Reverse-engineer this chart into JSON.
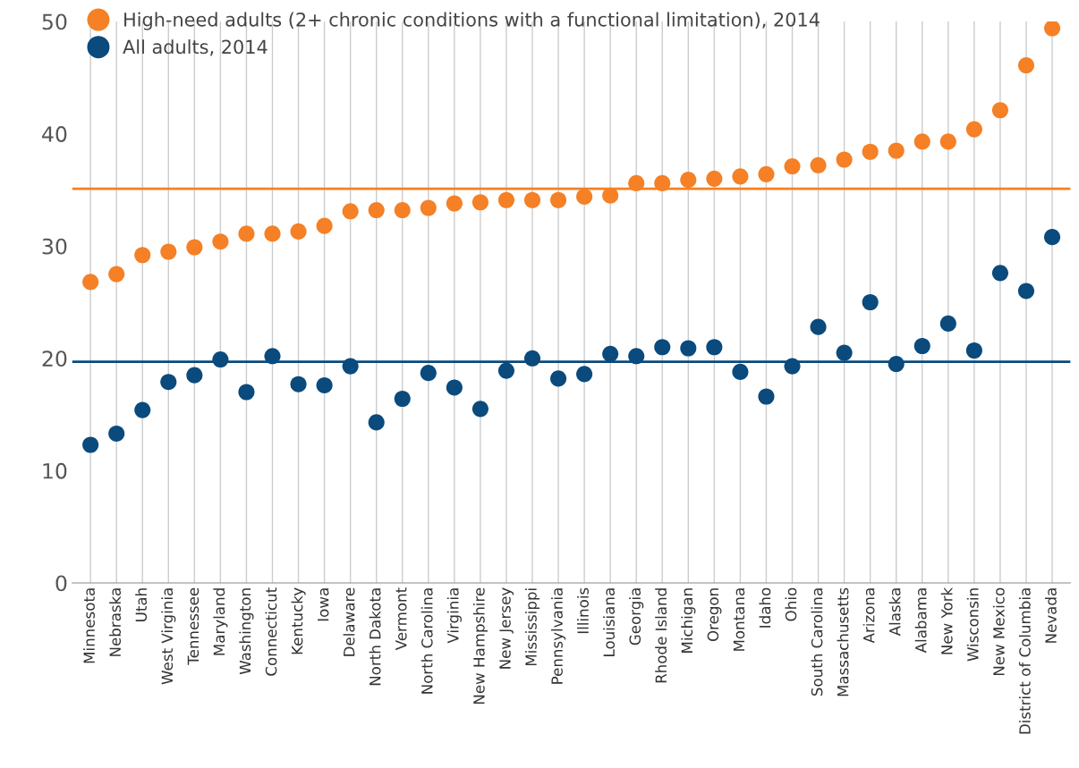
{
  "chart_data": {
    "type": "scatter",
    "categories": [
      "Minnesota",
      "Nebraska",
      "Utah",
      "West Virginia",
      "Tennessee",
      "Maryland",
      "Washington",
      "Connecticut",
      "Kentucky",
      "Iowa",
      "Delaware",
      "North Dakota",
      "Vermont",
      "North Carolina",
      "Virginia",
      "New Hampshire",
      "New Jersey",
      "Mississippi",
      "Pennsylvania",
      "Illinois",
      "Louisiana",
      "Georgia",
      "Rhode Island",
      "Michigan",
      "Oregon",
      "Montana",
      "Idaho",
      "Ohio",
      "South Carolina",
      "Massachusetts",
      "Arizona",
      "Alaska",
      "Alabama",
      "New York",
      "Wisconsin",
      "New Mexico",
      "District of Columbia",
      "Nevada"
    ],
    "series": [
      {
        "name": "High-need adults (2+ chronic conditions with a functional limitation), 2014",
        "color": "#f58025",
        "values": [
          26.8,
          27.5,
          29.2,
          29.5,
          29.9,
          30.4,
          31.1,
          31.1,
          31.3,
          31.8,
          33.1,
          33.2,
          33.2,
          33.4,
          33.8,
          33.9,
          34.1,
          34.1,
          34.1,
          34.4,
          34.5,
          35.6,
          35.6,
          35.9,
          36.0,
          36.2,
          36.4,
          37.1,
          37.2,
          37.7,
          38.4,
          38.5,
          39.3,
          39.3,
          40.4,
          42.1,
          46.1,
          49.4
        ]
      },
      {
        "name": "All adults, 2014",
        "color": "#0a4a7c",
        "values": [
          12.3,
          13.3,
          15.4,
          17.9,
          18.5,
          19.9,
          17.0,
          20.2,
          17.7,
          17.6,
          19.3,
          14.3,
          16.4,
          18.7,
          17.4,
          15.5,
          18.9,
          20.0,
          18.2,
          18.6,
          20.4,
          20.2,
          21.0,
          20.9,
          21.0,
          18.8,
          16.6,
          19.3,
          22.8,
          20.5,
          25.0,
          19.5,
          21.1,
          23.1,
          20.7,
          27.6,
          26.0,
          30.8
        ]
      }
    ],
    "ref_lines": [
      {
        "axis": "y",
        "value": 35.1,
        "color": "#f58025"
      },
      {
        "axis": "y",
        "value": 19.7,
        "color": "#0a4a7c"
      }
    ],
    "ylim": [
      0,
      50
    ],
    "yticks": [
      0,
      10,
      20,
      30,
      40,
      50
    ],
    "grid": "x",
    "legend": "top left",
    "marker": "circle"
  }
}
